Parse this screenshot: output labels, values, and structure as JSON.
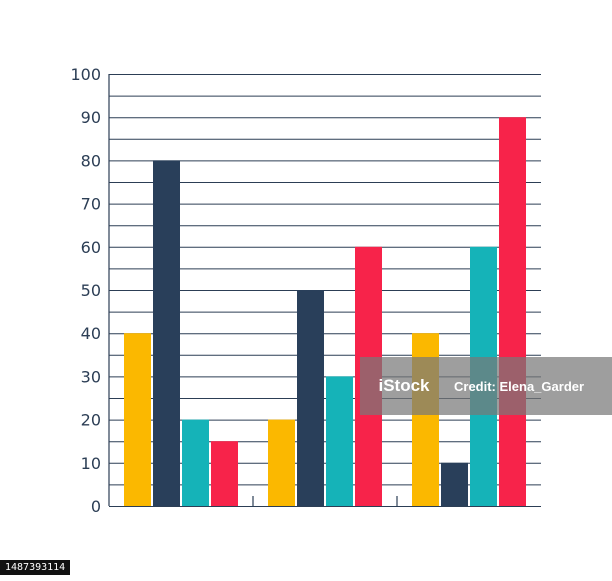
{
  "chart_data": {
    "type": "bar",
    "title": "",
    "xlabel": "",
    "ylabel": "",
    "ylim": [
      0,
      100
    ],
    "yticks": [
      "0",
      "10",
      "20",
      "30",
      "40",
      "50",
      "60",
      "70",
      "80",
      "90",
      "100"
    ],
    "categories": [
      "",
      "",
      ""
    ],
    "series": [
      {
        "color": "#fbb800",
        "values": [
          40,
          20,
          40
        ]
      },
      {
        "color": "#293f5a",
        "values": [
          80,
          50,
          10
        ]
      },
      {
        "color": "#15b3b8",
        "values": [
          20,
          30,
          60
        ]
      },
      {
        "color": "#f7234a",
        "values": [
          15,
          60,
          90
        ]
      }
    ],
    "grid": true,
    "legend": "none"
  },
  "watermark": {
    "logo": "iStock",
    "credit": "Credit: Elena_Garder"
  },
  "stock_id": "1487393114"
}
